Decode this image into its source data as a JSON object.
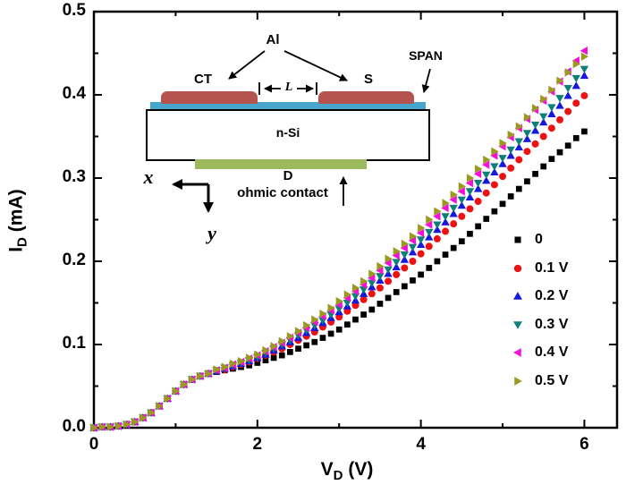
{
  "axes": {
    "x_title": {
      "main": "V",
      "sub": "D",
      "rest": " (V)"
    },
    "y_title": {
      "main": "I",
      "sub": "D",
      "rest": " (mA)"
    },
    "x_ticklabels": [
      "0",
      "2",
      "4",
      "6"
    ],
    "y_ticklabels": [
      "0.0",
      "0.1",
      "0.2",
      "0.3",
      "0.4",
      "0.5"
    ]
  },
  "inset": {
    "al_label": "Al",
    "span_label": "SPAN",
    "ct_label": "CT",
    "s_label": "S",
    "l_label": "L",
    "nsi_label": "n-Si",
    "d_label": "D",
    "ohmic_label": "ohmic contact",
    "x_axis_label": "x",
    "y_axis_label": "y",
    "colors": {
      "pad": "#b5534f",
      "span_layer": "#47a6c9",
      "ohmic_contact": "#9cba5d"
    }
  },
  "chart_data": {
    "type": "scatter",
    "title": "",
    "xlabel": "V_D (V)",
    "ylabel": "I_D (mA)",
    "xlim": [
      0,
      6.4
    ],
    "ylim": [
      0,
      0.5
    ],
    "x_ticks": [
      0,
      2,
      4,
      6
    ],
    "x_minor_ticks": [
      1,
      3,
      5
    ],
    "y_ticks": [
      0,
      0.1,
      0.2,
      0.3,
      0.4,
      0.5
    ],
    "y_minor_ticks": [
      0.05,
      0.15,
      0.25,
      0.35,
      0.45
    ],
    "grid": false,
    "legend_position": "middle-right",
    "x_start": 0,
    "x_step": 0.1,
    "series": [
      {
        "name": "0",
        "marker": "square",
        "color": "#000000",
        "values": [
          0.0,
          0.001,
          0.001,
          0.002,
          0.004,
          0.007,
          0.012,
          0.018,
          0.026,
          0.035,
          0.044,
          0.052,
          0.058,
          0.062,
          0.065,
          0.067,
          0.069,
          0.071,
          0.073,
          0.075,
          0.078,
          0.081,
          0.084,
          0.087,
          0.091,
          0.095,
          0.099,
          0.103,
          0.108,
          0.113,
          0.118,
          0.124,
          0.13,
          0.136,
          0.142,
          0.149,
          0.156,
          0.163,
          0.17,
          0.177,
          0.184,
          0.192,
          0.2,
          0.208,
          0.216,
          0.224,
          0.233,
          0.242,
          0.251,
          0.26,
          0.269,
          0.278,
          0.287,
          0.296,
          0.305,
          0.314,
          0.323,
          0.331,
          0.339,
          0.348,
          0.356
        ]
      },
      {
        "name": "0.1 V",
        "marker": "circle",
        "color": "#ee1111",
        "values": [
          0.0,
          0.001,
          0.001,
          0.002,
          0.004,
          0.007,
          0.012,
          0.018,
          0.026,
          0.035,
          0.044,
          0.052,
          0.058,
          0.062,
          0.065,
          0.068,
          0.07,
          0.073,
          0.076,
          0.079,
          0.083,
          0.087,
          0.091,
          0.095,
          0.1,
          0.105,
          0.11,
          0.115,
          0.121,
          0.127,
          0.133,
          0.14,
          0.147,
          0.154,
          0.161,
          0.168,
          0.176,
          0.184,
          0.192,
          0.2,
          0.209,
          0.218,
          0.227,
          0.236,
          0.245,
          0.254,
          0.263,
          0.272,
          0.282,
          0.292,
          0.302,
          0.312,
          0.322,
          0.332,
          0.341,
          0.35,
          0.36,
          0.37,
          0.38,
          0.39,
          0.399
        ]
      },
      {
        "name": "0.2 V",
        "marker": "triangle-up",
        "color": "#1717dd",
        "values": [
          0.0,
          0.001,
          0.001,
          0.002,
          0.004,
          0.007,
          0.012,
          0.018,
          0.026,
          0.035,
          0.044,
          0.052,
          0.058,
          0.062,
          0.065,
          0.068,
          0.071,
          0.074,
          0.077,
          0.08,
          0.084,
          0.088,
          0.093,
          0.098,
          0.103,
          0.108,
          0.114,
          0.12,
          0.126,
          0.132,
          0.139,
          0.146,
          0.153,
          0.161,
          0.169,
          0.177,
          0.185,
          0.193,
          0.202,
          0.211,
          0.22,
          0.229,
          0.238,
          0.247,
          0.257,
          0.267,
          0.277,
          0.287,
          0.297,
          0.307,
          0.317,
          0.327,
          0.337,
          0.347,
          0.357,
          0.367,
          0.377,
          0.387,
          0.399,
          0.411,
          0.423
        ]
      },
      {
        "name": "0.3 V",
        "marker": "triangle-down",
        "color": "#0b7f78",
        "values": [
          0.0,
          0.001,
          0.001,
          0.002,
          0.004,
          0.007,
          0.012,
          0.018,
          0.026,
          0.035,
          0.044,
          0.052,
          0.058,
          0.062,
          0.065,
          0.069,
          0.072,
          0.075,
          0.078,
          0.081,
          0.085,
          0.09,
          0.095,
          0.1,
          0.105,
          0.111,
          0.117,
          0.123,
          0.129,
          0.136,
          0.143,
          0.15,
          0.158,
          0.166,
          0.174,
          0.182,
          0.19,
          0.199,
          0.208,
          0.217,
          0.226,
          0.235,
          0.244,
          0.254,
          0.264,
          0.274,
          0.284,
          0.294,
          0.304,
          0.314,
          0.324,
          0.334,
          0.344,
          0.354,
          0.364,
          0.374,
          0.385,
          0.396,
          0.408,
          0.42,
          0.431
        ]
      },
      {
        "name": "0.4 V",
        "marker": "triangle-left",
        "color": "#f50fd8",
        "values": [
          0.0,
          0.001,
          0.001,
          0.002,
          0.004,
          0.007,
          0.012,
          0.018,
          0.026,
          0.035,
          0.044,
          0.052,
          0.058,
          0.062,
          0.065,
          0.069,
          0.072,
          0.076,
          0.079,
          0.083,
          0.087,
          0.092,
          0.097,
          0.102,
          0.108,
          0.114,
          0.12,
          0.127,
          0.134,
          0.141,
          0.148,
          0.156,
          0.164,
          0.172,
          0.18,
          0.189,
          0.198,
          0.207,
          0.216,
          0.225,
          0.234,
          0.244,
          0.254,
          0.264,
          0.274,
          0.284,
          0.294,
          0.305,
          0.316,
          0.327,
          0.338,
          0.349,
          0.36,
          0.371,
          0.382,
          0.393,
          0.404,
          0.416,
          0.428,
          0.441,
          0.453
        ]
      },
      {
        "name": "0.5 V",
        "marker": "triangle-right",
        "color": "#9a9a1e",
        "values": [
          0.0,
          0.001,
          0.001,
          0.002,
          0.004,
          0.007,
          0.012,
          0.018,
          0.026,
          0.035,
          0.044,
          0.052,
          0.058,
          0.062,
          0.065,
          0.07,
          0.073,
          0.077,
          0.08,
          0.084,
          0.088,
          0.093,
          0.098,
          0.104,
          0.11,
          0.116,
          0.123,
          0.13,
          0.137,
          0.144,
          0.152,
          0.16,
          0.168,
          0.176,
          0.185,
          0.194,
          0.203,
          0.212,
          0.221,
          0.23,
          0.24,
          0.25,
          0.26,
          0.27,
          0.28,
          0.29,
          0.3,
          0.311,
          0.322,
          0.332,
          0.342,
          0.352,
          0.362,
          0.373,
          0.384,
          0.395,
          0.406,
          0.417,
          0.427,
          0.437,
          0.446
        ]
      }
    ]
  }
}
